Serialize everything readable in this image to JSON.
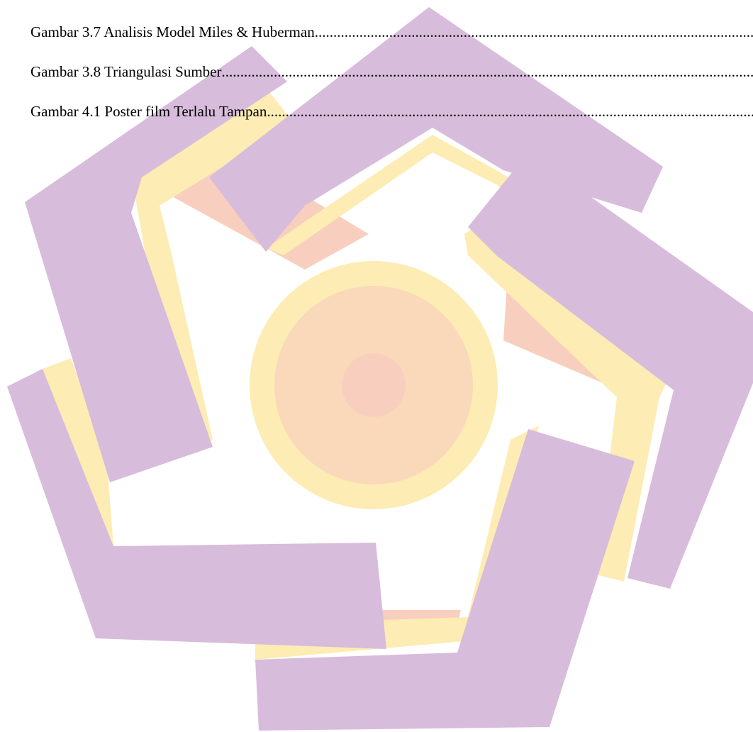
{
  "toc": {
    "entries": [
      {
        "label": "Gambar 3.7 Analisis Model Miles & Huberman"
      },
      {
        "label": "Gambar 3.8 Triangulasi Sumber"
      },
      {
        "label": "Gambar 4.1 Poster film Terlalu Tampan"
      }
    ],
    "leader": "..............................................................................................................................................................................................."
  },
  "watermark": {
    "colors": {
      "purple": "#d8bcdb",
      "purple_shade": "#cfbcdc",
      "yellow": "#fdecb3",
      "peach": "#fad9bb",
      "salmon": "#f8cfbe"
    }
  }
}
